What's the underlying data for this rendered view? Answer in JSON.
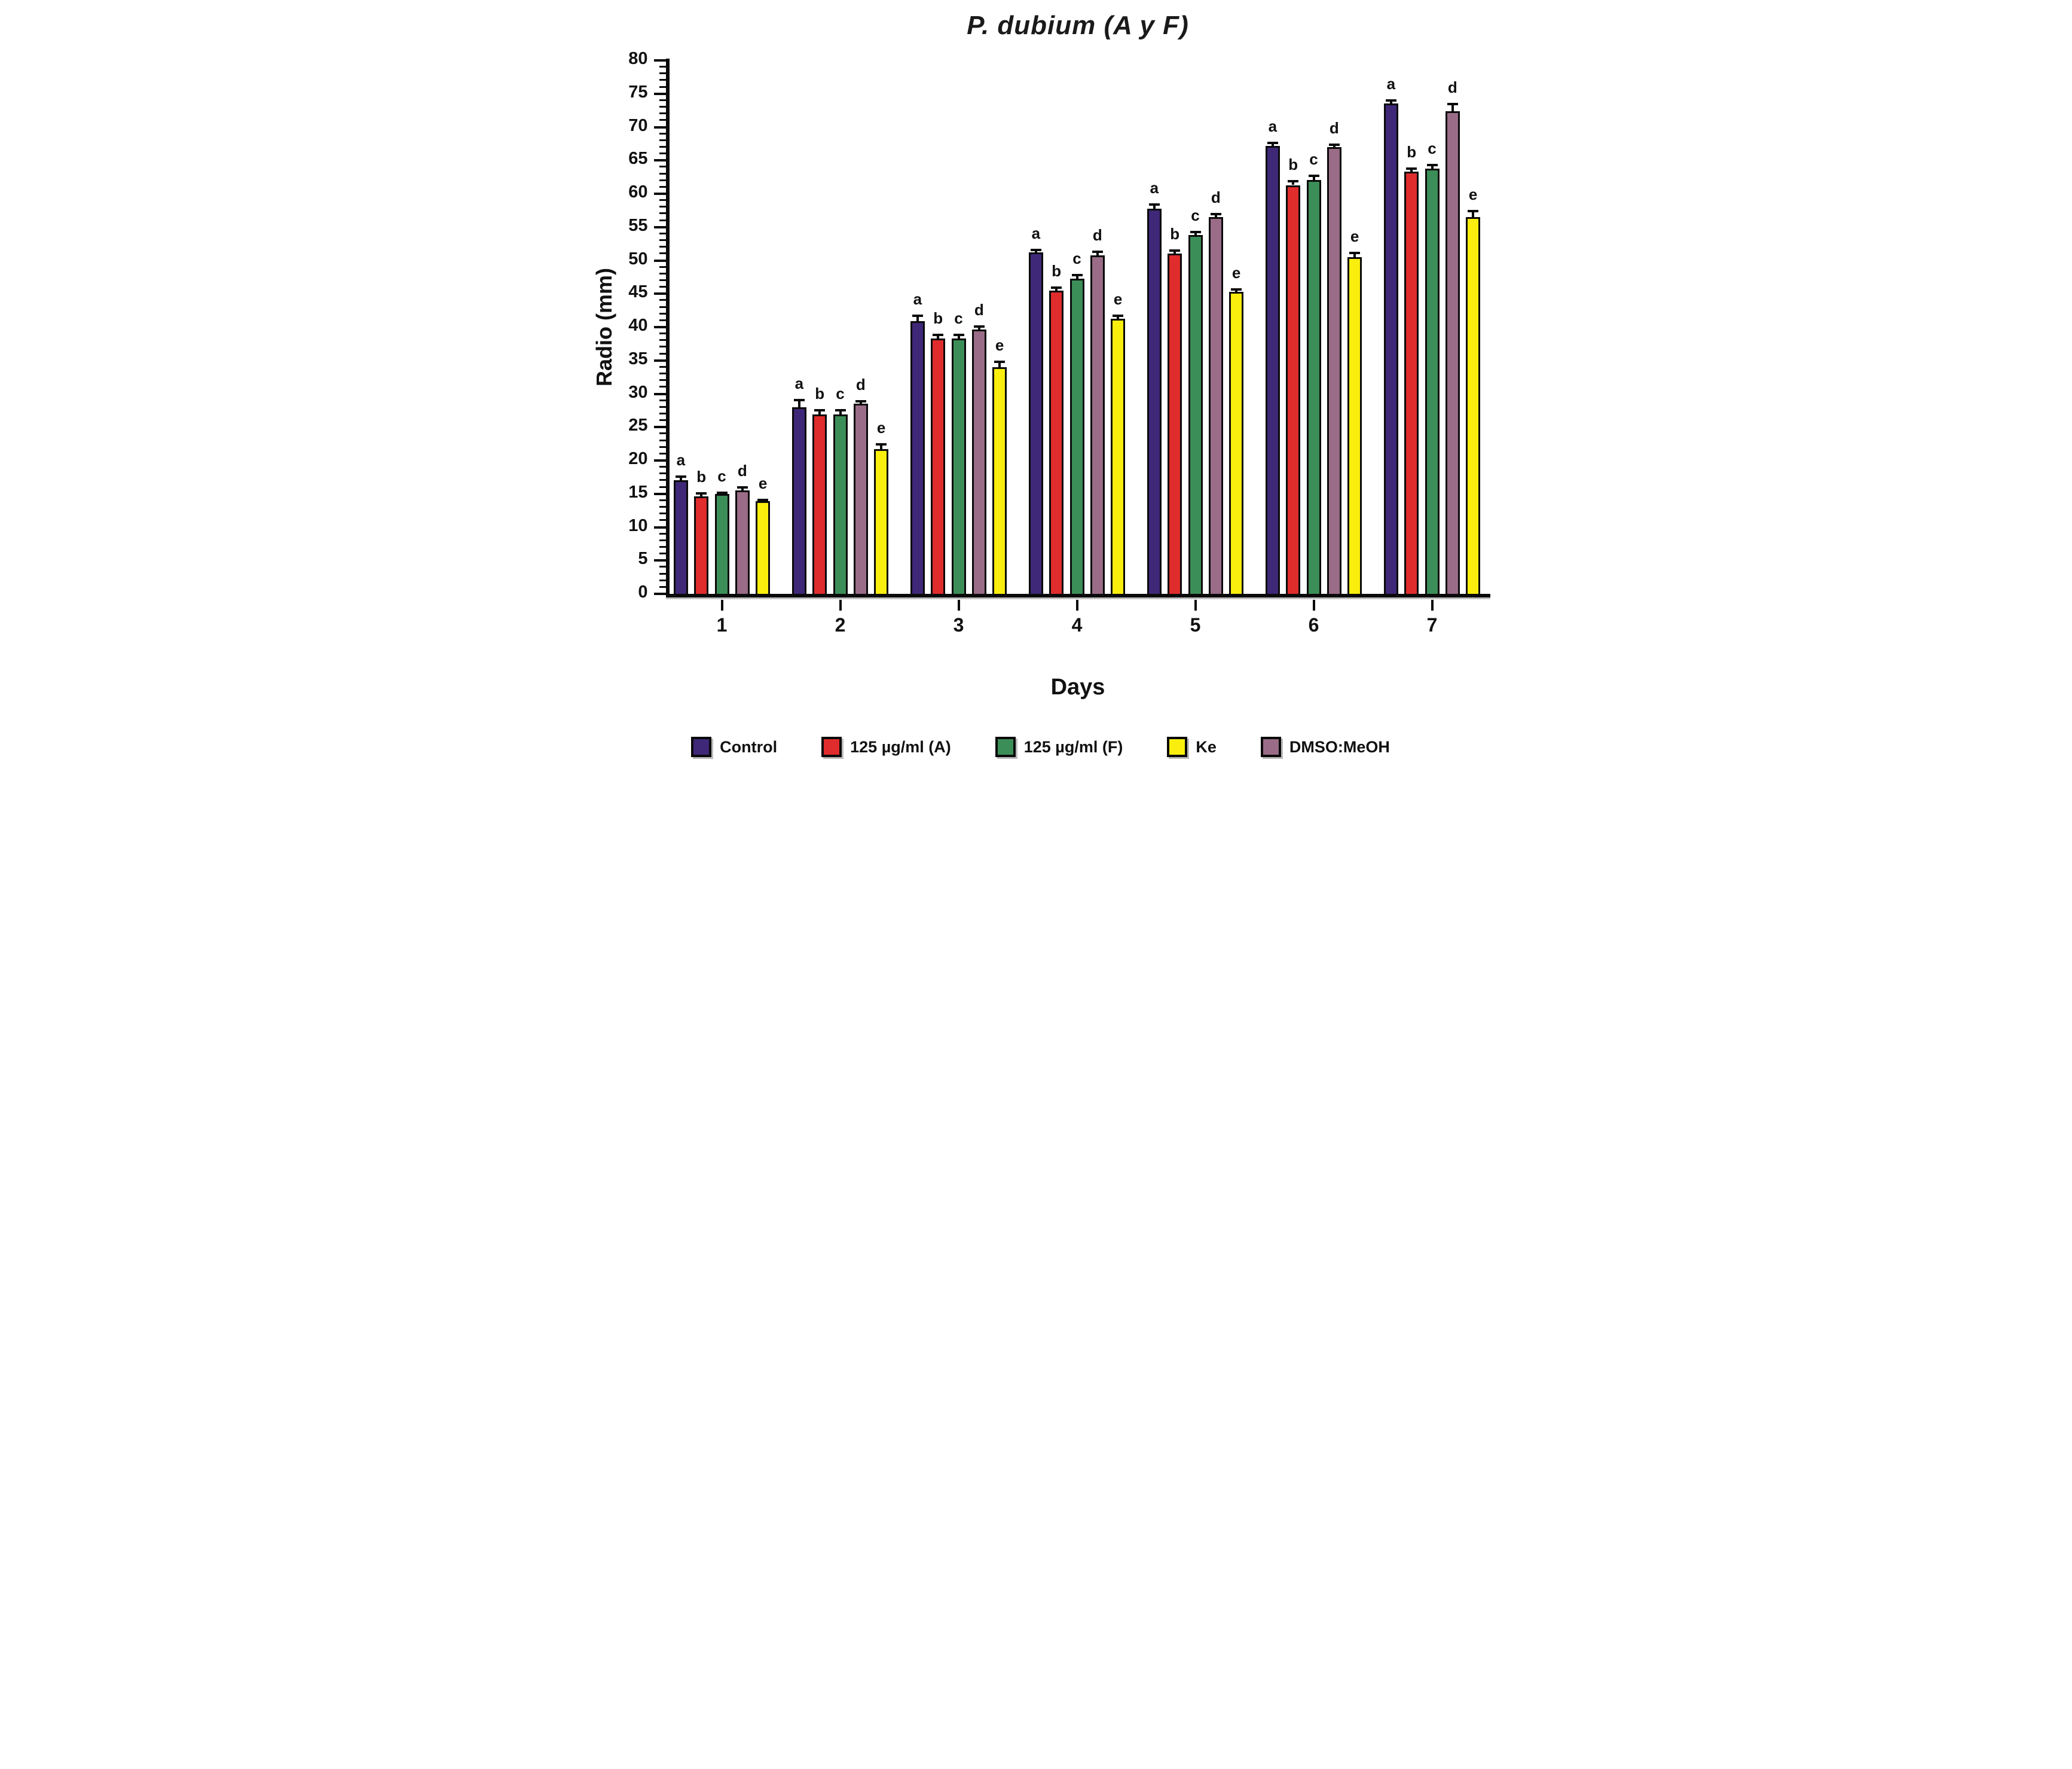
{
  "chart_data": {
    "type": "bar",
    "title": "P. dubium (A y F)",
    "xlabel": "Days",
    "ylabel": "Radio (mm)",
    "ylim": [
      0,
      80
    ],
    "y_major_tick_step": 5,
    "y_minor_tick_step": 1,
    "y_tick_labels": [
      "0",
      "5",
      "10",
      "15",
      "20",
      "25",
      "30",
      "35",
      "40",
      "45",
      "50",
      "55",
      "60",
      "65",
      "70",
      "75",
      "80"
    ],
    "grid": false,
    "legend_position": "bottom",
    "categories": [
      "1",
      "2",
      "3",
      "4",
      "5",
      "6",
      "7"
    ],
    "series": [
      {
        "name": "Control",
        "color": "#3f2878",
        "values": [
          17.0,
          28.0,
          40.9,
          51.2,
          57.8,
          67.2,
          73.5
        ],
        "errors": [
          0.5,
          1.0,
          0.7,
          0.3,
          0.5,
          0.3,
          0.4
        ],
        "letter": "a"
      },
      {
        "name": "125 µg/ml (A)",
        "color": "#e02c2c",
        "values": [
          14.6,
          26.9,
          38.3,
          45.5,
          51.0,
          61.3,
          63.3
        ],
        "errors": [
          0.4,
          0.5,
          0.4,
          0.3,
          0.4,
          0.5,
          0.4
        ],
        "letter": "b"
      },
      {
        "name": "125 µg/ml (F)",
        "color": "#3c8e58",
        "values": [
          15.0,
          26.9,
          38.3,
          47.3,
          53.8,
          62.1,
          63.8
        ],
        "errors": [
          0.1,
          0.5,
          0.4,
          0.4,
          0.4,
          0.5,
          0.4
        ],
        "letter": "c"
      },
      {
        "name": "DMSO:MeOH",
        "color": "#9a6c87",
        "values": [
          15.5,
          28.5,
          39.6,
          50.8,
          56.5,
          67.0,
          72.4
        ],
        "errors": [
          0.4,
          0.3,
          0.4,
          0.4,
          0.4,
          0.3,
          1.0
        ],
        "letter": "d"
      },
      {
        "name": "Ke",
        "color": "#faee0e",
        "values": [
          13.9,
          21.7,
          34.0,
          41.3,
          45.3,
          50.5,
          56.5
        ],
        "errors": [
          0.1,
          0.6,
          0.7,
          0.3,
          0.3,
          0.5,
          0.8
        ],
        "letter": "e"
      }
    ],
    "significance_letters": [
      "a",
      "b",
      "c",
      "d",
      "e"
    ],
    "legend": [
      {
        "label": "Control",
        "color": "#3f2878"
      },
      {
        "label": "125 µg/ml (A)",
        "color": "#e02c2c"
      },
      {
        "label": "125 µg/ml (F)",
        "color": "#3c8e58"
      },
      {
        "label": "Ke",
        "color": "#faee0e"
      },
      {
        "label": "DMSO:MeOH",
        "color": "#9a6c87"
      }
    ]
  }
}
